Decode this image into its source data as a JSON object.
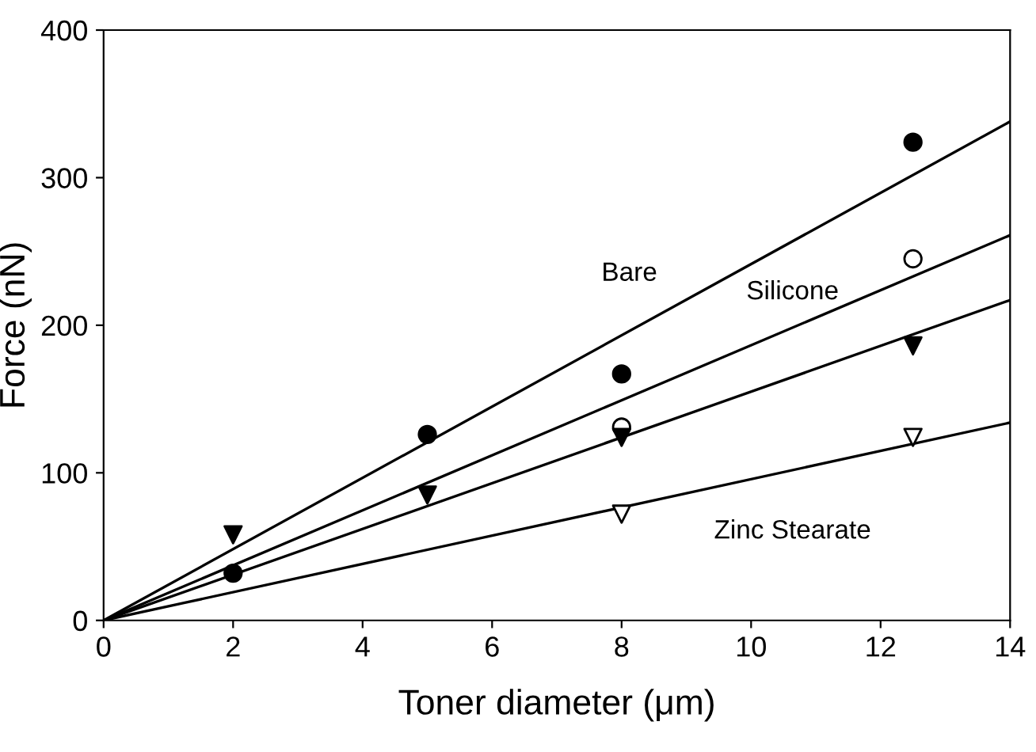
{
  "chart_data": {
    "type": "scatter",
    "xlabel": "Toner diameter (μm)",
    "ylabel": "Force (nN)",
    "xlim": [
      0,
      14
    ],
    "ylim": [
      0,
      400
    ],
    "xticks": [
      0,
      2,
      4,
      6,
      8,
      10,
      12,
      14
    ],
    "yticks": [
      0,
      100,
      200,
      300,
      400
    ],
    "grid": false,
    "legend": false,
    "series": [
      {
        "marker": "circle",
        "color": "#000000",
        "x": [
          2,
          5,
          8,
          12.5
        ],
        "values": [
          32,
          126,
          167,
          324
        ]
      },
      {
        "marker": "circle",
        "color": "#ffffff",
        "x": [
          8,
          12.5
        ],
        "values": [
          131,
          245
        ]
      },
      {
        "marker": "triangle",
        "color": "#000000",
        "x": [
          2,
          5,
          8,
          12.5
        ],
        "values": [
          58,
          85,
          124,
          186
        ]
      },
      {
        "marker": "triangle",
        "color": "#ffffff",
        "x": [
          8,
          12.5
        ],
        "values": [
          72,
          124
        ]
      },
      {
        "type": "line",
        "name": "Bare",
        "color": "#000000",
        "x": [
          0,
          14
        ],
        "values": [
          0,
          338
        ]
      },
      {
        "type": "line",
        "name": "Silicone",
        "color": "#000000",
        "x": [
          0,
          14
        ],
        "values": [
          0,
          261
        ]
      },
      {
        "type": "line",
        "color": "#000000",
        "x": [
          0,
          14
        ],
        "values": [
          0,
          217
        ]
      },
      {
        "type": "line",
        "name": "Zinc Stearate",
        "color": "#000000",
        "x": [
          0,
          14
        ],
        "values": [
          0,
          134
        ]
      }
    ]
  }
}
